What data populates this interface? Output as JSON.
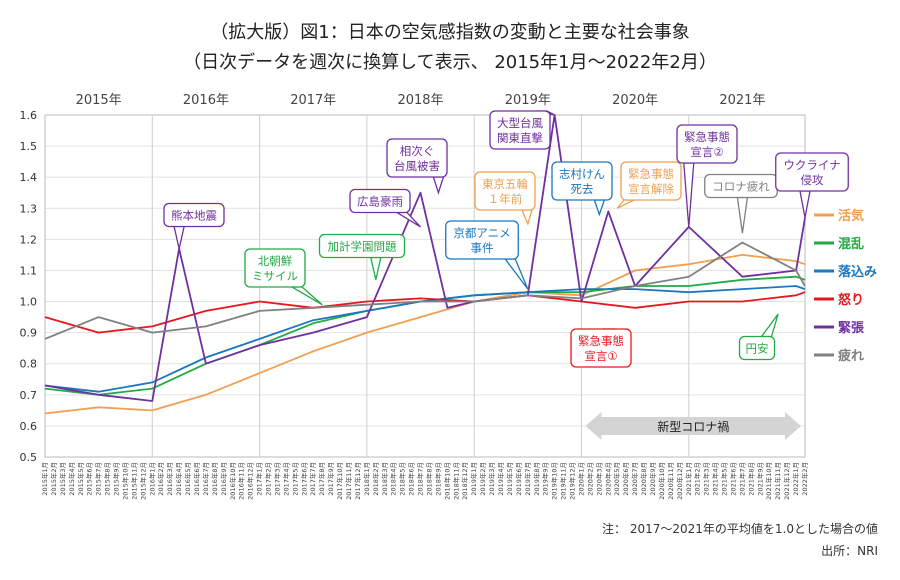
{
  "title": "（拡大版）図1：日本の空気感指数の変動と主要な社会事象",
  "subtitle": "（日次データを週次に換算して表示、 2015年1月～2022年2月）",
  "note": "注： 2017～2021年の平均値を1.0とした場合の値",
  "source": "出所：NRI",
  "chart_data": {
    "type": "line",
    "ylim": [
      0.5,
      1.6
    ],
    "yticks": [
      "0.5",
      "0.6",
      "0.7",
      "0.8",
      "0.9",
      "1.0",
      "1.1",
      "1.2",
      "1.3",
      "1.4",
      "1.5",
      "1.6"
    ],
    "xlim": [
      "2015-01",
      "2022-02"
    ],
    "year_labels": [
      "2015年",
      "2016年",
      "2017年",
      "2018年",
      "2019年",
      "2020年",
      "2021年"
    ],
    "series": [
      {
        "name": "活気",
        "color": "#f0a050",
        "points": [
          [
            "2015-01",
            0.64
          ],
          [
            "2015-07",
            0.66
          ],
          [
            "2016-01",
            0.65
          ],
          [
            "2016-07",
            0.7
          ],
          [
            "2017-01",
            0.77
          ],
          [
            "2017-07",
            0.84
          ],
          [
            "2018-01",
            0.9
          ],
          [
            "2018-07",
            0.95
          ],
          [
            "2019-01",
            1.0
          ],
          [
            "2019-07",
            1.03
          ],
          [
            "2020-01",
            1.02
          ],
          [
            "2020-07",
            1.1
          ],
          [
            "2021-01",
            1.12
          ],
          [
            "2021-07",
            1.15
          ],
          [
            "2022-01",
            1.13
          ],
          [
            "2022-02",
            1.12
          ]
        ]
      },
      {
        "name": "混乱",
        "color": "#22aa44",
        "points": [
          [
            "2015-01",
            0.72
          ],
          [
            "2015-07",
            0.7
          ],
          [
            "2016-01",
            0.72
          ],
          [
            "2016-07",
            0.8
          ],
          [
            "2017-01",
            0.86
          ],
          [
            "2017-07",
            0.93
          ],
          [
            "2018-01",
            0.97
          ],
          [
            "2018-07",
            1.0
          ],
          [
            "2019-01",
            1.02
          ],
          [
            "2019-07",
            1.03
          ],
          [
            "2020-01",
            1.03
          ],
          [
            "2020-07",
            1.05
          ],
          [
            "2021-01",
            1.05
          ],
          [
            "2021-07",
            1.07
          ],
          [
            "2022-01",
            1.08
          ],
          [
            "2022-02",
            1.07
          ]
        ]
      },
      {
        "name": "落込み",
        "color": "#1a77c0",
        "points": [
          [
            "2015-01",
            0.73
          ],
          [
            "2015-07",
            0.71
          ],
          [
            "2016-01",
            0.74
          ],
          [
            "2016-07",
            0.82
          ],
          [
            "2017-01",
            0.88
          ],
          [
            "2017-07",
            0.94
          ],
          [
            "2018-01",
            0.97
          ],
          [
            "2018-07",
            1.0
          ],
          [
            "2019-01",
            1.02
          ],
          [
            "2019-07",
            1.03
          ],
          [
            "2020-01",
            1.04
          ],
          [
            "2020-07",
            1.04
          ],
          [
            "2021-01",
            1.03
          ],
          [
            "2021-07",
            1.04
          ],
          [
            "2022-01",
            1.05
          ],
          [
            "2022-02",
            1.04
          ]
        ]
      },
      {
        "name": "怒り",
        "color": "#e8161f",
        "points": [
          [
            "2015-01",
            0.95
          ],
          [
            "2015-07",
            0.9
          ],
          [
            "2016-01",
            0.92
          ],
          [
            "2016-07",
            0.97
          ],
          [
            "2017-01",
            1.0
          ],
          [
            "2017-07",
            0.98
          ],
          [
            "2018-01",
            1.0
          ],
          [
            "2018-07",
            1.01
          ],
          [
            "2019-01",
            1.0
          ],
          [
            "2019-07",
            1.02
          ],
          [
            "2020-01",
            1.0
          ],
          [
            "2020-07",
            0.98
          ],
          [
            "2021-01",
            1.0
          ],
          [
            "2021-07",
            1.0
          ],
          [
            "2022-01",
            1.02
          ],
          [
            "2022-02",
            1.03
          ]
        ]
      },
      {
        "name": "緊張",
        "color": "#7030a0",
        "points": [
          [
            "2015-01",
            0.73
          ],
          [
            "2015-07",
            0.7
          ],
          [
            "2016-01",
            0.68
          ],
          [
            "2016-04",
            1.17
          ],
          [
            "2016-07",
            0.8
          ],
          [
            "2017-01",
            0.86
          ],
          [
            "2017-07",
            0.9
          ],
          [
            "2018-01",
            0.95
          ],
          [
            "2018-07",
            1.35
          ],
          [
            "2018-10",
            0.98
          ],
          [
            "2019-01",
            1.0
          ],
          [
            "2019-07",
            1.02
          ],
          [
            "2019-10",
            1.6
          ],
          [
            "2020-01",
            1.0
          ],
          [
            "2020-04",
            1.29
          ],
          [
            "2020-07",
            1.05
          ],
          [
            "2021-01",
            1.24
          ],
          [
            "2021-07",
            1.08
          ],
          [
            "2022-01",
            1.1
          ],
          [
            "2022-02",
            1.27
          ]
        ]
      },
      {
        "name": "疲れ",
        "color": "#808080",
        "points": [
          [
            "2015-01",
            0.88
          ],
          [
            "2015-07",
            0.95
          ],
          [
            "2016-01",
            0.9
          ],
          [
            "2016-07",
            0.92
          ],
          [
            "2017-01",
            0.97
          ],
          [
            "2017-07",
            0.98
          ],
          [
            "2018-01",
            0.99
          ],
          [
            "2018-07",
            1.0
          ],
          [
            "2019-01",
            1.0
          ],
          [
            "2019-07",
            1.02
          ],
          [
            "2020-01",
            1.01
          ],
          [
            "2020-07",
            1.05
          ],
          [
            "2021-01",
            1.08
          ],
          [
            "2021-07",
            1.19
          ],
          [
            "2022-01",
            1.1
          ],
          [
            "2022-02",
            1.05
          ]
        ]
      }
    ],
    "annotations": [
      {
        "lines": [
          "熊本地震"
        ],
        "color": "#7030a0",
        "date": "2016-04",
        "y": 1.17
      },
      {
        "lines": [
          "北朝鮮",
          "ミサイル"
        ],
        "color": "#22aa44",
        "date": "2017-08",
        "y": 0.99
      },
      {
        "lines": [
          "加計学園問題"
        ],
        "color": "#22aa44",
        "date": "2018-02",
        "y": 1.07
      },
      {
        "lines": [
          "広島豪雨"
        ],
        "color": "#7030a0",
        "date": "2018-07",
        "y": 1.24
      },
      {
        "lines": [
          "相次ぐ",
          "台風被害"
        ],
        "color": "#7030a0",
        "date": "2018-09",
        "y": 1.35
      },
      {
        "lines": [
          "京都アニメ",
          "事件"
        ],
        "color": "#1a77c0",
        "date": "2019-07",
        "y": 1.04
      },
      {
        "lines": [
          "東京五輪",
          "１年前"
        ],
        "color": "#f0a050",
        "date": "2019-07",
        "y": 1.25
      },
      {
        "lines": [
          "大型台風",
          "関東直撃"
        ],
        "color": "#7030a0",
        "date": "2019-10",
        "y": 1.6
      },
      {
        "lines": [
          "志村けん",
          "死去"
        ],
        "color": "#1a77c0",
        "date": "2020-03",
        "y": 1.28
      },
      {
        "lines": [
          "緊急事態",
          "宣言解除"
        ],
        "color": "#f0a050",
        "date": "2020-05",
        "y": 1.3
      },
      {
        "lines": [
          "緊急事態",
          "宣言①"
        ],
        "color": "#e8161f",
        "date": "2020-04",
        "y": 0.9
      },
      {
        "lines": [
          "緊急事態",
          "宣言②"
        ],
        "color": "#7030a0",
        "date": "2021-01",
        "y": 1.24
      },
      {
        "lines": [
          "コロナ疲れ"
        ],
        "color": "#808080",
        "date": "2021-07",
        "y": 1.22
      },
      {
        "lines": [
          "円安"
        ],
        "color": "#22aa44",
        "date": "2021-11",
        "y": 0.96
      },
      {
        "lines": [
          "ウクライナ",
          "侵攻"
        ],
        "color": "#7030a0",
        "date": "2022-02",
        "y": 1.27
      }
    ],
    "corona_label": "新型コロナ禍",
    "corona_range": [
      "2020-01",
      "2022-02"
    ]
  }
}
